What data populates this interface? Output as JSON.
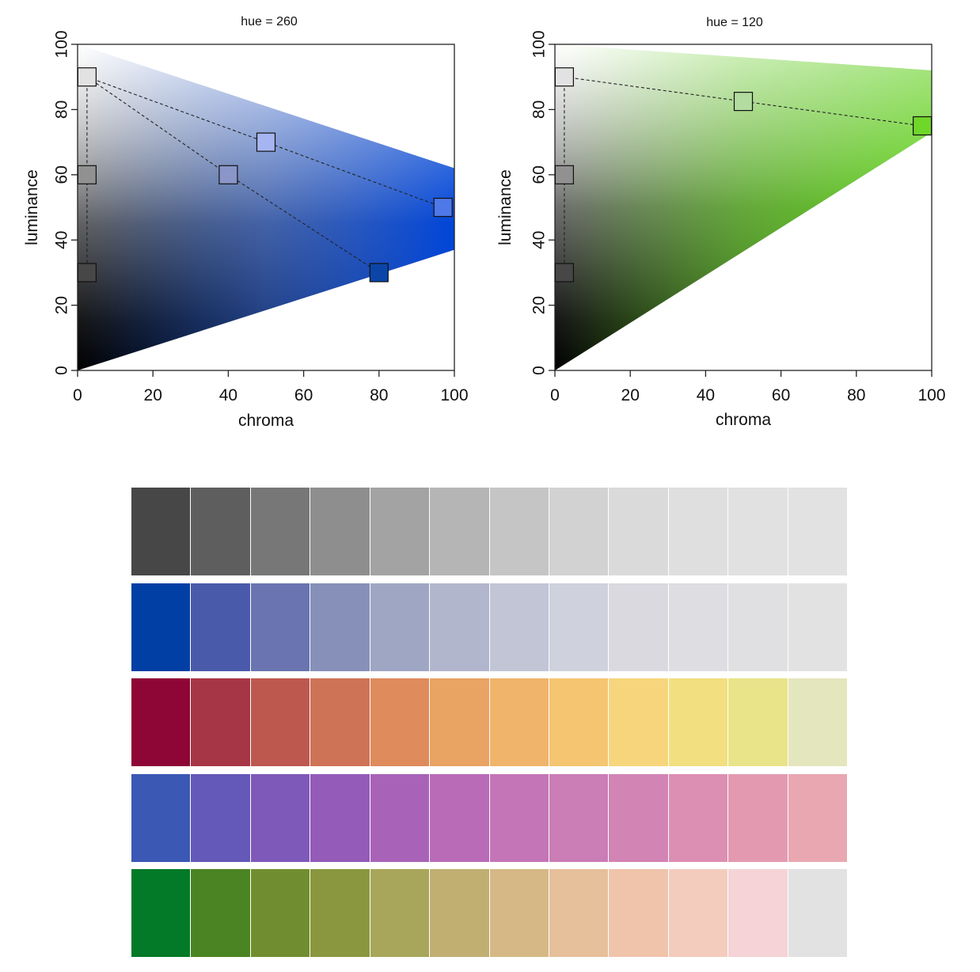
{
  "chart_data": [
    {
      "type": "scatter",
      "title": "hue = 260",
      "hue": 260,
      "xlabel": "chroma",
      "ylabel": "luminance",
      "xlim": [
        0,
        100
      ],
      "ylim": [
        0,
        100
      ],
      "x_ticks": [
        "0",
        "20",
        "40",
        "60",
        "80",
        "100"
      ],
      "y_ticks": [
        "0",
        "20",
        "40",
        "60",
        "80",
        "100"
      ],
      "grid": false,
      "gamut": [
        [
          0,
          0
        ],
        [
          0,
          100
        ],
        [
          100,
          62
        ],
        [
          100,
          37
        ]
      ],
      "gamut_colors": {
        "white": "#ffffff",
        "black": "#000000",
        "full": "#0045d8",
        "top_edge": "#7f9cff"
      },
      "points": [
        {
          "chroma": 2.5,
          "luminance": 90,
          "color": "#e2e2e2"
        },
        {
          "chroma": 2.5,
          "luminance": 60,
          "color": "#919191"
        },
        {
          "chroma": 2.5,
          "luminance": 30,
          "color": "#474747"
        },
        {
          "chroma": 50,
          "luminance": 70,
          "color": "#a6b4f1"
        },
        {
          "chroma": 40,
          "luminance": 60,
          "color": "#8a95c8"
        },
        {
          "chroma": 97,
          "luminance": 50,
          "color": "#4f78e8"
        },
        {
          "chroma": 80,
          "luminance": 30,
          "color": "#0b45a8"
        }
      ],
      "paths": [
        [
          [
            2.5,
            90
          ],
          [
            2.5,
            30
          ]
        ],
        [
          [
            2.5,
            90
          ],
          [
            50,
            70
          ],
          [
            97,
            50
          ]
        ],
        [
          [
            2.5,
            90
          ],
          [
            40,
            60
          ],
          [
            80,
            30
          ]
        ]
      ]
    },
    {
      "type": "scatter",
      "title": "hue = 120",
      "hue": 120,
      "xlabel": "chroma",
      "ylabel": "luminance",
      "xlim": [
        0,
        100
      ],
      "ylim": [
        0,
        100
      ],
      "x_ticks": [
        "0",
        "20",
        "40",
        "60",
        "80",
        "100"
      ],
      "y_ticks": [
        "0",
        "20",
        "40",
        "60",
        "80",
        "100"
      ],
      "grid": false,
      "gamut": [
        [
          0,
          0
        ],
        [
          0,
          100
        ],
        [
          100,
          92
        ],
        [
          100,
          73
        ]
      ],
      "gamut_colors": {
        "white": "#ffffff",
        "black": "#000000",
        "full": "#5fcf1a",
        "top_edge": "#a8f07a"
      },
      "points": [
        {
          "chroma": 2.5,
          "luminance": 90,
          "color": "#e2e2e2"
        },
        {
          "chroma": 2.5,
          "luminance": 60,
          "color": "#919191"
        },
        {
          "chroma": 2.5,
          "luminance": 30,
          "color": "#474747"
        },
        {
          "chroma": 50,
          "luminance": 82.5,
          "color": "#b3dca0"
        },
        {
          "chroma": 97.5,
          "luminance": 75,
          "color": "#6fd62a"
        }
      ],
      "paths": [
        [
          [
            2.5,
            90
          ],
          [
            2.5,
            30
          ]
        ],
        [
          [
            2.5,
            90
          ],
          [
            50,
            82.5
          ],
          [
            97.5,
            75
          ]
        ]
      ]
    }
  ],
  "palettes": [
    [
      "#474747",
      "#5e5e5e",
      "#777777",
      "#8e8e8e",
      "#a3a3a3",
      "#b5b5b5",
      "#c5c5c5",
      "#d2d2d2",
      "#dadada",
      "#dfdfdf",
      "#e1e1e1",
      "#e2e2e2"
    ],
    [
      "#023fa5",
      "#4a5aaa",
      "#6a74b1",
      "#8690b9",
      "#9ea6c3",
      "#b2b6cd",
      "#c1c5d5",
      "#cfd1dc",
      "#dad9e0",
      "#dedde2",
      "#e0e0e2",
      "#e2e2e2"
    ],
    [
      "#8e0636",
      "#a63645",
      "#bd584f",
      "#cf7356",
      "#df8b5c",
      "#e9a363",
      "#f0b46b",
      "#f5c572",
      "#f6d57c",
      "#f2df80",
      "#e9e489",
      "#e4e6bd"
    ],
    [
      "#3b58b5",
      "#6458b8",
      "#7f59b9",
      "#945bb8",
      "#a863b8",
      "#b96bb8",
      "#c475b7",
      "#cb7db5",
      "#d284b4",
      "#dc8fb2",
      "#e39ab1",
      "#e8a7b1"
    ],
    [
      "#027a27",
      "#4b8422",
      "#708e2f",
      "#8b973f",
      "#a8a65a",
      "#c1af72",
      "#d5b885",
      "#e6bf9b",
      "#efc4aa",
      "#f3ccbe",
      "#f5d3d6",
      "#e2e2e2"
    ]
  ]
}
